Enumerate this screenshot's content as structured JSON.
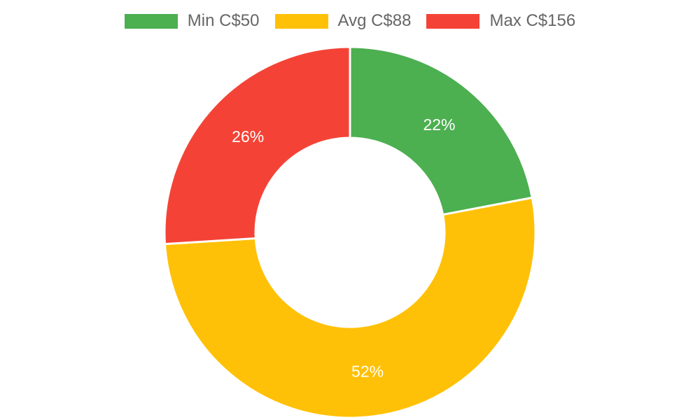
{
  "chart_data": {
    "type": "pie",
    "variant": "doughnut",
    "legend_position": "top",
    "start_angle": "12 o'clock, clockwise",
    "series": [
      {
        "name": "Min C$50",
        "value": 50,
        "percent_label": "22%",
        "color": "#4caf50"
      },
      {
        "name": "Avg C$88",
        "value": 88,
        "percent_label": "52%",
        "color": "#ffc107"
      },
      {
        "name": "Max C$156",
        "value": 156,
        "percent_label": "26%",
        "color": "#f44336"
      }
    ],
    "shares": [
      22,
      52,
      26
    ],
    "label_color": "#ffffff",
    "legend_text_color": "#666666"
  }
}
